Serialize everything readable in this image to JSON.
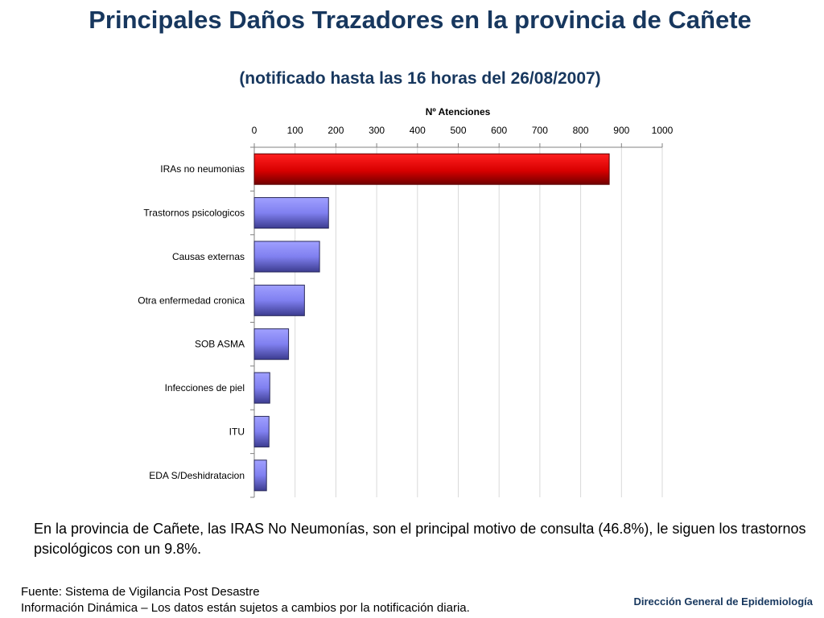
{
  "header": {
    "title": "Principales Daños Trazadores en la provincia de Cañete",
    "subtitle": "(notificado hasta las 16 horas del 26/08/2007)"
  },
  "chart_data": {
    "type": "bar",
    "orientation": "horizontal",
    "xlabel": "Nº Atenciones",
    "xlim": [
      0,
      1000
    ],
    "xticks": [
      "0",
      "100",
      "200",
      "300",
      "400",
      "500",
      "600",
      "700",
      "800",
      "900",
      "1000"
    ],
    "grid": true,
    "categories": [
      "IRAs no neumonias",
      "Trastornos psicologicos",
      "Causas externas",
      "Otra enfermedad cronica",
      "SOB ASMA",
      "Infecciones de piel",
      "ITU",
      "EDA S/Deshidratacion"
    ],
    "values": [
      870,
      182,
      160,
      123,
      84,
      38,
      36,
      30
    ],
    "colors": [
      "#e00000",
      "#8080ff",
      "#8080ff",
      "#8080ff",
      "#8080ff",
      "#8080ff",
      "#8080ff",
      "#8080ff"
    ]
  },
  "body": {
    "text": "En la provincia de Cañete, las IRAS No Neumonías, son el principal motivo de consulta (46.8%), le siguen los trastornos psicológicos con un 9.8%."
  },
  "footer": {
    "source": "Fuente: Sistema de Vigilancia Post Desastre",
    "note": "Información Dinámica – Los datos están sujetos a cambios por la notificación diaria.",
    "org": "Dirección General de Epidemiología"
  }
}
